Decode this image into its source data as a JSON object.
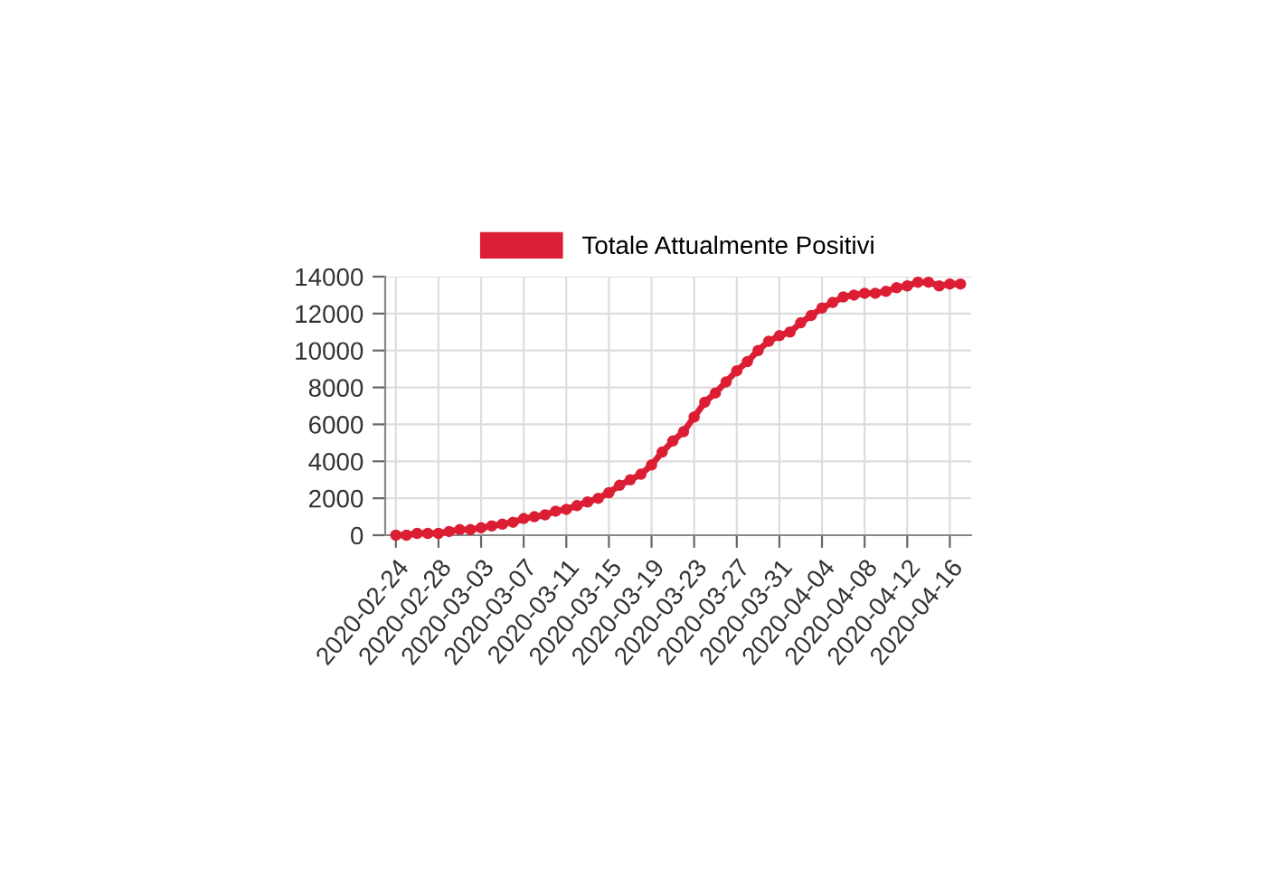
{
  "chart_data": {
    "type": "line",
    "x": [
      "2020-02-24",
      "2020-02-25",
      "2020-02-26",
      "2020-02-27",
      "2020-02-28",
      "2020-02-29",
      "2020-03-01",
      "2020-03-02",
      "2020-03-03",
      "2020-03-04",
      "2020-03-05",
      "2020-03-06",
      "2020-03-07",
      "2020-03-08",
      "2020-03-09",
      "2020-03-10",
      "2020-03-11",
      "2020-03-12",
      "2020-03-13",
      "2020-03-14",
      "2020-03-15",
      "2020-03-16",
      "2020-03-17",
      "2020-03-18",
      "2020-03-19",
      "2020-03-20",
      "2020-03-21",
      "2020-03-22",
      "2020-03-23",
      "2020-03-24",
      "2020-03-25",
      "2020-03-26",
      "2020-03-27",
      "2020-03-28",
      "2020-03-29",
      "2020-03-30",
      "2020-03-31",
      "2020-04-01",
      "2020-04-02",
      "2020-04-03",
      "2020-04-04",
      "2020-04-05",
      "2020-04-06",
      "2020-04-07",
      "2020-04-08",
      "2020-04-09",
      "2020-04-10",
      "2020-04-11",
      "2020-04-12",
      "2020-04-13",
      "2020-04-14",
      "2020-04-15",
      "2020-04-16",
      "2020-04-17"
    ],
    "series": [
      {
        "name": "Totale Attualmente Positivi",
        "color": "#dc1e34",
        "values": [
          0,
          0,
          100,
          100,
          100,
          200,
          300,
          300,
          400,
          500,
          600,
          700,
          900,
          1000,
          1100,
          1300,
          1400,
          1600,
          1800,
          2000,
          2300,
          2700,
          3000,
          3300,
          3800,
          4500,
          5100,
          5600,
          6400,
          7200,
          7700,
          8300,
          8900,
          9400,
          10000,
          10500,
          10800,
          11000,
          11500,
          11900,
          12300,
          12600,
          12900,
          13000,
          13100,
          13100,
          13200,
          13400,
          13500,
          13700,
          13700,
          13500,
          13600,
          13600
        ]
      }
    ],
    "xlim": [
      "2020-02-23",
      "2020-04-18"
    ],
    "xticks": [
      "2020-02-24",
      "2020-02-28",
      "2020-03-03",
      "2020-03-07",
      "2020-03-11",
      "2020-03-15",
      "2020-03-19",
      "2020-03-23",
      "2020-03-27",
      "2020-03-31",
      "2020-04-04",
      "2020-04-08",
      "2020-04-12",
      "2020-04-16"
    ],
    "ylim": [
      0,
      14000
    ],
    "yticks": [
      0,
      2000,
      4000,
      6000,
      8000,
      10000,
      12000,
      14000
    ],
    "grid": true,
    "legend": "top",
    "marker": "circle",
    "line_style": "solid"
  }
}
